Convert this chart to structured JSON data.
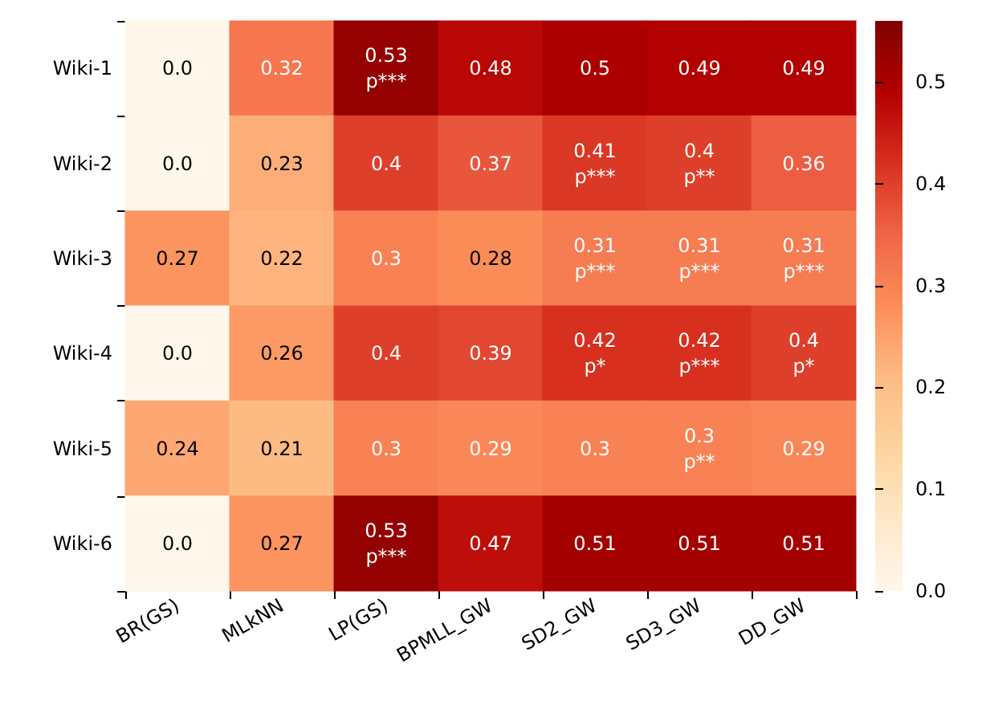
{
  "chart_data": {
    "type": "heatmap",
    "categories": [
      "BR(GS)",
      "MLkNN",
      "LP(GS)",
      "BPMLL_GW",
      "SD2_GW",
      "SD3_GW",
      "DD_GW"
    ],
    "y_categories": [
      "Wiki-1",
      "Wiki-2",
      "Wiki-3",
      "Wiki-4",
      "Wiki-5",
      "Wiki-6"
    ],
    "cells": [
      [
        0.0,
        0.32,
        0.53,
        0.48,
        0.5,
        0.49,
        0.49
      ],
      [
        0.0,
        0.23,
        0.4,
        0.37,
        0.41,
        0.4,
        0.36
      ],
      [
        0.27,
        0.22,
        0.3,
        0.28,
        0.31,
        0.31,
        0.31
      ],
      [
        0.0,
        0.26,
        0.4,
        0.39,
        0.42,
        0.42,
        0.4
      ],
      [
        0.24,
        0.21,
        0.3,
        0.29,
        0.3,
        0.3,
        0.29
      ],
      [
        0.0,
        0.27,
        0.53,
        0.47,
        0.51,
        0.51,
        0.51
      ]
    ],
    "cell_labels": [
      [
        "0.0",
        "0.32",
        "0.53\np***",
        "0.48",
        "0.5",
        "0.49",
        "0.49"
      ],
      [
        "0.0",
        "0.23",
        "0.4",
        "0.37",
        "0.41\np***",
        "0.4\np**",
        "0.36"
      ],
      [
        "0.27",
        "0.22",
        "0.3",
        "0.28",
        "0.31\np***",
        "0.31\np***",
        "0.31\np***"
      ],
      [
        "0.0",
        "0.26",
        "0.4",
        "0.39",
        "0.42\np*",
        "0.42\np***",
        "0.4\np*"
      ],
      [
        "0.24",
        "0.21",
        "0.3",
        "0.29",
        "0.3",
        "0.3\np**",
        "0.29"
      ],
      [
        "0.0",
        "0.27",
        "0.53\np***",
        "0.47",
        "0.51",
        "0.51",
        "0.51"
      ]
    ],
    "clim": [
      0,
      0.56
    ],
    "cticks": [
      {
        "value": 0,
        "label": "0.0"
      },
      0.1,
      0.2,
      0.3,
      0.4,
      0.5
    ]
  }
}
